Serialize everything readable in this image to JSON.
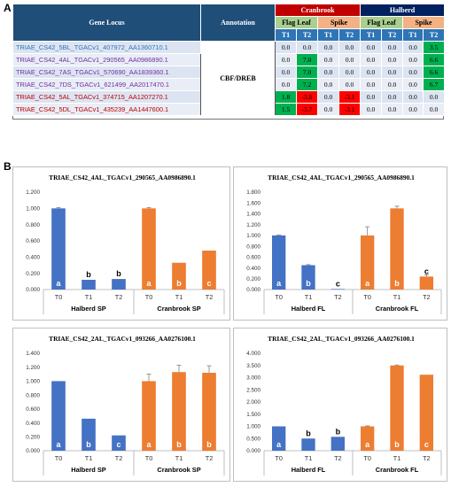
{
  "panel_labels": {
    "a": "A",
    "b": "B"
  },
  "table": {
    "header_gene": "Gene Locus",
    "header_annotation": "Annotation",
    "cultivar_1": "Cranbrook",
    "cultivar_2": "Halberd",
    "tissue_1": "Flag Leaf",
    "tissue_2": "Spike",
    "tp_1": "T1",
    "tp_2": "T2",
    "annotation": "CBF/DREB",
    "colors": {
      "green": "#00b050",
      "red": "#ff0000",
      "blue_text": "#2e75b6",
      "purple_text": "#7030a0",
      "red_text": "#c00000"
    },
    "rows": [
      {
        "locus": "TRIAE_CS42_5BL_TGACv1_407972_AA1360710.1",
        "text_color": "blue",
        "values": [
          "0.0",
          "0.0",
          "0.0",
          "0.0",
          "0.0",
          "0.0",
          "0.0",
          "3.5"
        ],
        "highlight": [
          "",
          "",
          "",
          "",
          "",
          "",
          "",
          "green"
        ]
      },
      {
        "locus": "TRIAE_CS42_4AL_TGACv1_290565_AA0986890.1",
        "text_color": "purple",
        "values": [
          "0.0",
          "7.0",
          "0.0",
          "0.0",
          "0.0",
          "0.0",
          "0.0",
          "6.6"
        ],
        "highlight": [
          "",
          "green",
          "",
          "",
          "",
          "",
          "",
          "green"
        ]
      },
      {
        "locus": "TRIAE_CS42_7AS_TGACv1_570690_AA1839360.1",
        "text_color": "purple",
        "values": [
          "0.0",
          "7.0",
          "0.0",
          "0.0",
          "0.0",
          "0.0",
          "0.0",
          "6.6"
        ],
        "highlight": [
          "",
          "green",
          "",
          "",
          "",
          "",
          "",
          "green"
        ]
      },
      {
        "locus": "TRIAE_CS42_7DS_TGACv1_621499_AA2017470.1",
        "text_color": "purple",
        "values": [
          "0.0",
          "7.2",
          "0.0",
          "0.0",
          "0.0",
          "0.0",
          "0.0",
          "6.7"
        ],
        "highlight": [
          "",
          "green",
          "",
          "",
          "",
          "",
          "",
          "green"
        ]
      },
      {
        "locus": "TRIAE_CS42_5AL_TGACv1_374715_AA1207270.1",
        "text_color": "red",
        "values": [
          "1.8",
          "-3.8",
          "0.0",
          "-3.1",
          "0.0",
          "0.0",
          "0.0",
          "0.0"
        ],
        "highlight": [
          "green",
          "red",
          "",
          "red",
          "",
          "",
          "",
          ""
        ]
      },
      {
        "locus": "TRIAE_CS42_5DL_TGACv1_435239_AA1447600.1",
        "text_color": "red",
        "values": [
          "1.5",
          "-3.7",
          "0.0",
          "-3.1",
          "0.0",
          "0.0",
          "0.0",
          "0.0"
        ],
        "highlight": [
          "green",
          "red",
          "",
          "red",
          "",
          "",
          "",
          ""
        ]
      }
    ]
  },
  "chart_data": [
    {
      "type": "bar",
      "title": "TRIAE_CS42_4AL_TGACv1_290565_AA0986890.1",
      "categories": [
        "T0",
        "T1",
        "T2",
        "T0",
        "T1",
        "T2"
      ],
      "groups": [
        "Halberd SP",
        "Cranbrook SP"
      ],
      "values": [
        1.0,
        0.12,
        0.13,
        1.0,
        0.33,
        0.48
      ],
      "errors": [
        0.01,
        0.0,
        0.0,
        0.01,
        0.0,
        0.0
      ],
      "letters": [
        "a",
        "b",
        "b",
        "a",
        "b",
        "c"
      ],
      "bar_colors": [
        "#4472c4",
        "#4472c4",
        "#4472c4",
        "#ed7d31",
        "#ed7d31",
        "#ed7d31"
      ],
      "ylim": [
        0,
        1.2
      ],
      "yticks": [
        "0.000",
        "0.200",
        "0.400",
        "0.600",
        "0.800",
        "1.000",
        "1.200"
      ],
      "ytick_values": [
        0,
        0.2,
        0.4,
        0.6,
        0.8,
        1.0,
        1.2
      ],
      "grid": false
    },
    {
      "type": "bar",
      "title": "TRIAE_CS42_4AL_TGACv1_290565_AA0986890.1",
      "categories": [
        "T0",
        "T1",
        "T2",
        "T0",
        "T1",
        "T2"
      ],
      "groups": [
        "Halberd FL",
        "Cranbrook FL"
      ],
      "values": [
        1.0,
        0.45,
        0.01,
        1.0,
        1.5,
        0.24
      ],
      "errors": [
        0.01,
        0.01,
        0.0,
        0.16,
        0.04,
        0.03
      ],
      "letters": [
        "a",
        "b",
        "c",
        "a",
        "b",
        "c"
      ],
      "bar_colors": [
        "#4472c4",
        "#4472c4",
        "#4472c4",
        "#ed7d31",
        "#ed7d31",
        "#ed7d31"
      ],
      "ylim": [
        0,
        1.8
      ],
      "yticks": [
        "0.000",
        "0.200",
        "0.400",
        "0.600",
        "0.800",
        "1.000",
        "1.200",
        "1.400",
        "1.600",
        "1.800"
      ],
      "ytick_values": [
        0,
        0.2,
        0.4,
        0.6,
        0.8,
        1.0,
        1.2,
        1.4,
        1.6,
        1.8
      ],
      "grid": false
    },
    {
      "type": "bar",
      "title": "TRIAE_CS42_2AL_TGACv1_093266_AA0276100.1",
      "categories": [
        "T0",
        "T1",
        "T2",
        "T0",
        "T1",
        "T2"
      ],
      "groups": [
        "Halberd SP",
        "Cranbrook SP"
      ],
      "values": [
        1.0,
        0.46,
        0.22,
        1.0,
        1.13,
        1.12
      ],
      "errors": [
        0.0,
        0.0,
        0.0,
        0.1,
        0.1,
        0.1
      ],
      "letters": [
        "a",
        "b",
        "c",
        "a",
        "b",
        "b"
      ],
      "bar_colors": [
        "#4472c4",
        "#4472c4",
        "#4472c4",
        "#ed7d31",
        "#ed7d31",
        "#ed7d31"
      ],
      "ylim": [
        0,
        1.4
      ],
      "yticks": [
        "0.000",
        "0.200",
        "0.400",
        "0.600",
        "0.800",
        "1.000",
        "1.200",
        "1.400"
      ],
      "ytick_values": [
        0,
        0.2,
        0.4,
        0.6,
        0.8,
        1.0,
        1.2,
        1.4
      ],
      "grid": false
    },
    {
      "type": "bar",
      "title": "TRIAE_CS42_2AL_TGACv1_093266_AA0276100.1",
      "categories": [
        "T0",
        "T1",
        "T2",
        "T0",
        "T1",
        "T2"
      ],
      "groups": [
        "Halberd FL",
        "Cranbrook FL"
      ],
      "values": [
        1.0,
        0.5,
        0.57,
        1.0,
        3.5,
        3.12
      ],
      "errors": [
        0.0,
        0.0,
        0.0,
        0.02,
        0.02,
        0.0
      ],
      "letters": [
        "a",
        "b",
        "b",
        "a",
        "b",
        "c"
      ],
      "bar_colors": [
        "#4472c4",
        "#4472c4",
        "#4472c4",
        "#ed7d31",
        "#ed7d31",
        "#ed7d31"
      ],
      "ylim": [
        0,
        4.0
      ],
      "yticks": [
        "0.000",
        "0.500",
        "1.000",
        "1.500",
        "2.000",
        "2.500",
        "3.000",
        "3.500",
        "4.000"
      ],
      "ytick_values": [
        0,
        0.5,
        1.0,
        1.5,
        2.0,
        2.5,
        3.0,
        3.5,
        4.0
      ],
      "grid": false
    }
  ]
}
